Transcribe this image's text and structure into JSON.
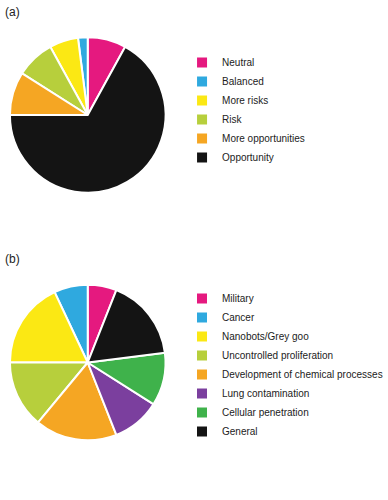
{
  "chart_data": [
    {
      "type": "pie",
      "title": "(a)",
      "categories": [
        "Neutral",
        "Balanced",
        "More risks",
        "Risk",
        "More opportunities",
        "Opportunity"
      ],
      "values": [
        8,
        2,
        6,
        8,
        9,
        67
      ],
      "colors": [
        "#e5197f",
        "#2fa9df",
        "#fbe814",
        "#b7cf3c",
        "#f5a623",
        "#141414"
      ],
      "legend": "right"
    },
    {
      "type": "pie",
      "title": "(b)",
      "categories": [
        "Military",
        "Cancer",
        "Nanobots/Grey goo",
        "Uncontrolled proliferation",
        "Development of chemical processes",
        "Lung contamination",
        "Cellular penetration",
        "General"
      ],
      "values": [
        6,
        7,
        18,
        14,
        17,
        10,
        11,
        17
      ],
      "colors": [
        "#e5197f",
        "#2fa9df",
        "#fbe814",
        "#b7cf3c",
        "#f5a623",
        "#7b3f9e",
        "#3fb24b",
        "#141414"
      ],
      "legend": "right"
    }
  ]
}
